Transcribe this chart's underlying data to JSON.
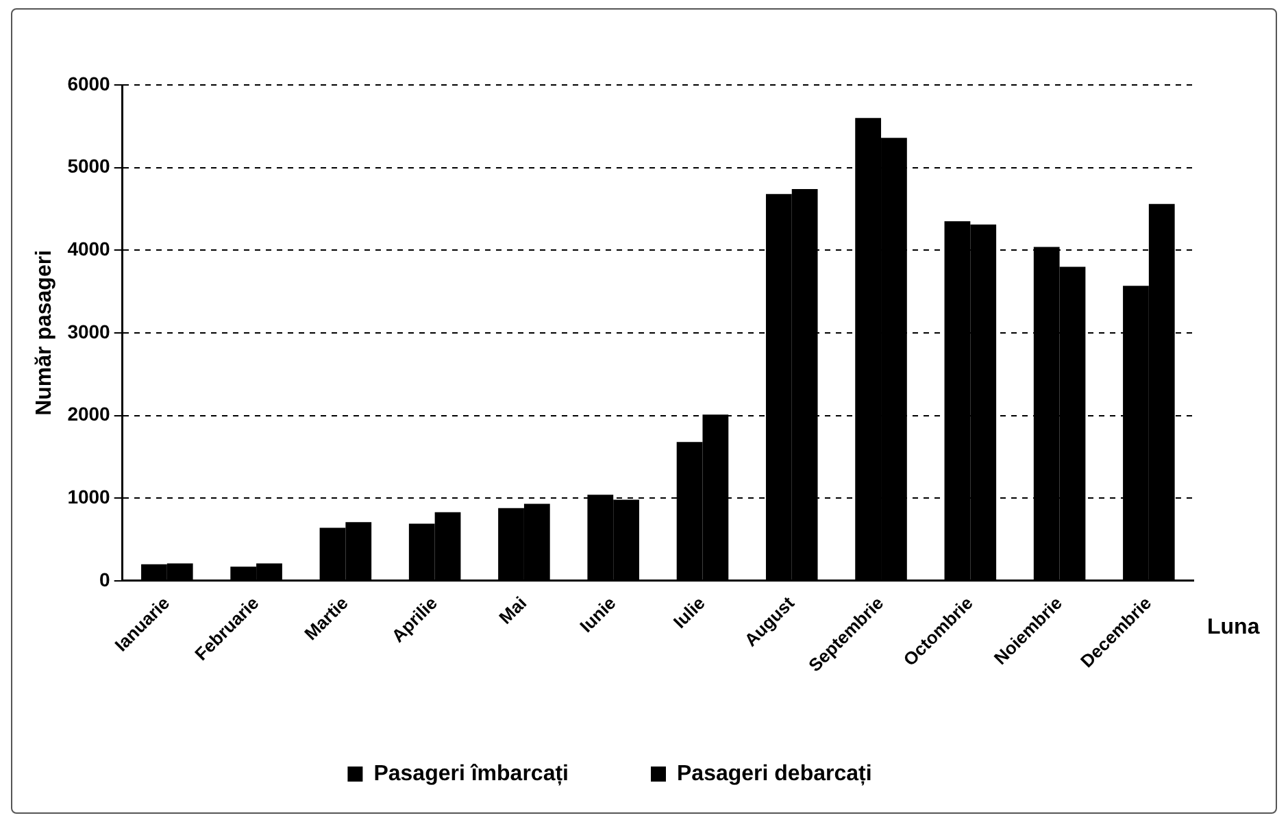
{
  "chart_data": {
    "type": "bar",
    "xlabel": "Luna",
    "ylabel": "Număr pasageri",
    "categories": [
      "Ianuarie",
      "Februarie",
      "Martie",
      "Aprilie",
      "Mai",
      "Iunie",
      "Iulie",
      "August",
      "Septembrie",
      "Octombrie",
      "Noiembrie",
      "Decembrie"
    ],
    "series": [
      {
        "name": "Pasageri îmbarcați",
        "color": "#000000",
        "values": [
          200,
          170,
          640,
          690,
          880,
          1040,
          1680,
          4680,
          5600,
          4350,
          4040,
          3570
        ]
      },
      {
        "name": "Pasageri debarcați",
        "color": "#000000",
        "values": [
          210,
          210,
          710,
          830,
          930,
          980,
          2010,
          4740,
          5360,
          4310,
          3800,
          4560
        ]
      }
    ],
    "ylim": [
      0,
      6000
    ],
    "yticks": [
      0,
      1000,
      2000,
      3000,
      4000,
      5000,
      6000
    ],
    "grid": "y",
    "legend": "bottom"
  }
}
